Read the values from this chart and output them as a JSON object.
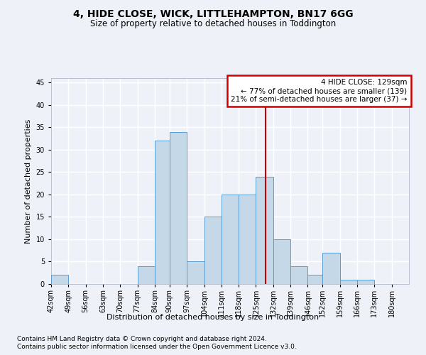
{
  "title": "4, HIDE CLOSE, WICK, LITTLEHAMPTON, BN17 6GG",
  "subtitle": "Size of property relative to detached houses in Toddington",
  "xlabel": "Distribution of detached houses by size in Toddington",
  "ylabel": "Number of detached properties",
  "footnote1": "Contains HM Land Registry data © Crown copyright and database right 2024.",
  "footnote2": "Contains public sector information licensed under the Open Government Licence v3.0.",
  "annotation_line1": "4 HIDE CLOSE: 129sqm",
  "annotation_line2": "← 77% of detached houses are smaller (139)",
  "annotation_line3": "21% of semi-detached houses are larger (37) →",
  "bar_color": "#c5d8e8",
  "bar_edge_color": "#5b9bd5",
  "red_line_color": "#cc0000",
  "red_line_x": 129,
  "annotation_box_edge_color": "#cc0000",
  "bin_edges": [
    42,
    49,
    56,
    63,
    70,
    77,
    84,
    90,
    97,
    104,
    111,
    118,
    125,
    132,
    139,
    146,
    152,
    159,
    166,
    173,
    180,
    187
  ],
  "tick_labels": [
    "42sqm",
    "49sqm",
    "56sqm",
    "63sqm",
    "70sqm",
    "77sqm",
    "84sqm",
    "90sqm",
    "97sqm",
    "104sqm",
    "111sqm",
    "118sqm",
    "125sqm",
    "132sqm",
    "139sqm",
    "146sqm",
    "152sqm",
    "159sqm",
    "166sqm",
    "173sqm",
    "180sqm"
  ],
  "values": [
    2,
    0,
    0,
    0,
    0,
    4,
    32,
    34,
    5,
    15,
    20,
    20,
    24,
    10,
    4,
    2,
    7,
    1,
    1,
    0,
    0
  ],
  "ylim": [
    0,
    46
  ],
  "yticks": [
    0,
    5,
    10,
    15,
    20,
    25,
    30,
    35,
    40,
    45
  ],
  "background_color": "#eef2f8",
  "grid_color": "#ffffff",
  "title_fontsize": 10,
  "subtitle_fontsize": 8.5,
  "ylabel_fontsize": 8,
  "xlabel_fontsize": 8,
  "tick_fontsize": 7,
  "annotation_fontsize": 7.5,
  "footnote_fontsize": 6.5
}
